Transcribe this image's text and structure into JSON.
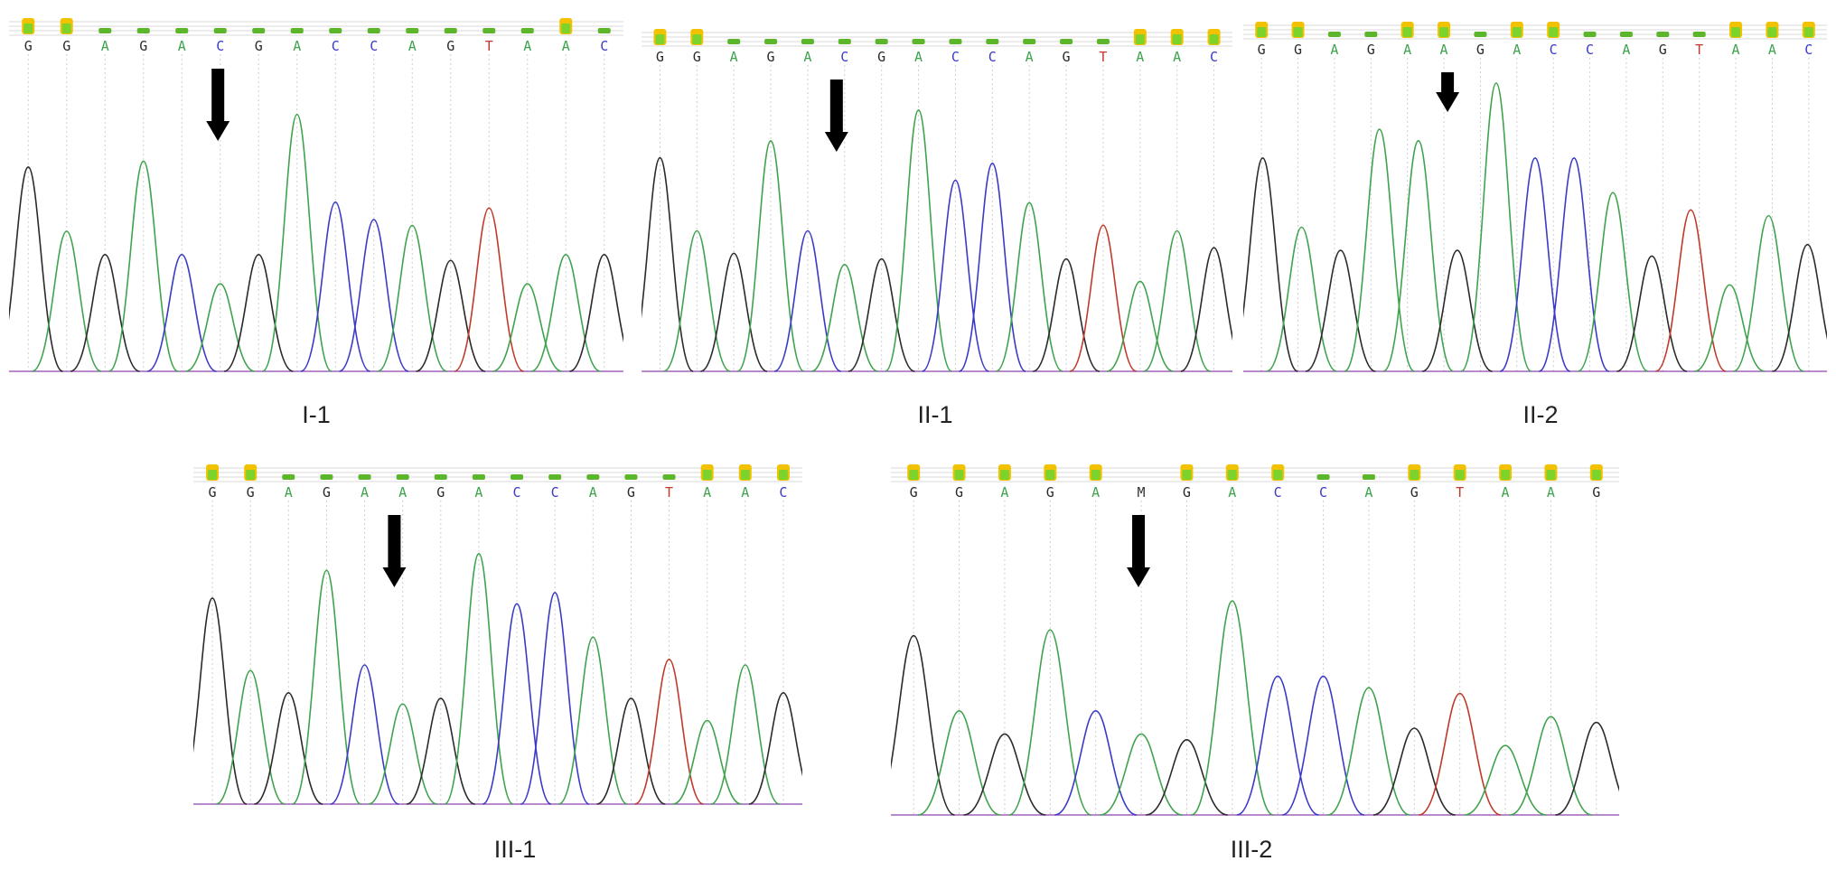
{
  "colors": {
    "A": "#3fa34d",
    "C": "#3a3ac8",
    "G": "#2a2a2a",
    "T": "#c0392b",
    "M": "#333333",
    "arrow": "#000000"
  },
  "panels": [
    {
      "label": "I-1",
      "bases": [
        "G",
        "G",
        "A",
        "G",
        "A",
        "C",
        "G",
        "A",
        "C",
        "C",
        "A",
        "G",
        "T",
        "A",
        "A",
        "C"
      ],
      "quality": [
        "high",
        "high",
        "low",
        "low",
        "low",
        "low",
        "low",
        "low",
        "low",
        "low",
        "low",
        "low",
        "low",
        "low",
        "high",
        "low"
      ],
      "arrow_base_index": 5,
      "peaks": [
        {
          "base": "G",
          "h": 0.7
        },
        {
          "base": "A",
          "h": 0.48
        },
        {
          "base": "G",
          "h": 0.4
        },
        {
          "base": "A",
          "h": 0.72
        },
        {
          "base": "C",
          "h": 0.4
        },
        {
          "base": "A",
          "h": 0.3
        },
        {
          "base": "G",
          "h": 0.4
        },
        {
          "base": "A",
          "h": 0.88
        },
        {
          "base": "C",
          "h": 0.58
        },
        {
          "base": "C",
          "h": 0.52
        },
        {
          "base": "A",
          "h": 0.5
        },
        {
          "base": "G",
          "h": 0.38
        },
        {
          "base": "T",
          "h": 0.56
        },
        {
          "base": "A",
          "h": 0.3
        },
        {
          "base": "A",
          "h": 0.4
        },
        {
          "base": "G",
          "h": 0.4
        }
      ]
    },
    {
      "label": "II-1",
      "bases": [
        "G",
        "G",
        "A",
        "G",
        "A",
        "C",
        "G",
        "A",
        "C",
        "C",
        "A",
        "G",
        "T",
        "A",
        "A",
        "C"
      ],
      "quality": [
        "high",
        "high",
        "low",
        "low",
        "low",
        "low",
        "low",
        "low",
        "low",
        "low",
        "low",
        "low",
        "low",
        "high",
        "high",
        "high"
      ],
      "arrow_base_index": 5,
      "peaks": [
        {
          "base": "G",
          "h": 0.76
        },
        {
          "base": "A",
          "h": 0.5
        },
        {
          "base": "G",
          "h": 0.42
        },
        {
          "base": "A",
          "h": 0.82
        },
        {
          "base": "C",
          "h": 0.5
        },
        {
          "base": "A",
          "h": 0.38
        },
        {
          "base": "G",
          "h": 0.4
        },
        {
          "base": "A",
          "h": 0.93
        },
        {
          "base": "C",
          "h": 0.68
        },
        {
          "base": "C",
          "h": 0.74
        },
        {
          "base": "A",
          "h": 0.6
        },
        {
          "base": "G",
          "h": 0.4
        },
        {
          "base": "T",
          "h": 0.52
        },
        {
          "base": "A",
          "h": 0.32
        },
        {
          "base": "A",
          "h": 0.5
        },
        {
          "base": "G",
          "h": 0.44
        }
      ]
    },
    {
      "label": "II-2",
      "bases": [
        "G",
        "G",
        "A",
        "G",
        "A",
        "A",
        "G",
        "A",
        "C",
        "C",
        "A",
        "G",
        "T",
        "A",
        "A",
        "C"
      ],
      "quality": [
        "high",
        "high",
        "low",
        "low",
        "high",
        "high",
        "low",
        "high",
        "high",
        "low",
        "low",
        "low",
        "low",
        "high",
        "high",
        "high"
      ],
      "arrow_base_index": 5,
      "peaks": [
        {
          "base": "G",
          "h": 0.74
        },
        {
          "base": "A",
          "h": 0.5
        },
        {
          "base": "G",
          "h": 0.42
        },
        {
          "base": "A",
          "h": 0.84
        },
        {
          "base": "A",
          "h": 0.8
        },
        {
          "base": "G",
          "h": 0.42
        },
        {
          "base": "A",
          "h": 1.0
        },
        {
          "base": "C",
          "h": 0.74
        },
        {
          "base": "C",
          "h": 0.74
        },
        {
          "base": "A",
          "h": 0.62
        },
        {
          "base": "G",
          "h": 0.4
        },
        {
          "base": "T",
          "h": 0.56
        },
        {
          "base": "A",
          "h": 0.3
        },
        {
          "base": "A",
          "h": 0.54
        },
        {
          "base": "G",
          "h": 0.44
        }
      ]
    },
    {
      "label": "III-1",
      "bases": [
        "G",
        "G",
        "A",
        "G",
        "A",
        "A",
        "G",
        "A",
        "C",
        "C",
        "A",
        "G",
        "T",
        "A",
        "A",
        "C"
      ],
      "quality": [
        "high",
        "high",
        "low",
        "low",
        "low",
        "low",
        "low",
        "low",
        "low",
        "low",
        "low",
        "low",
        "low",
        "high",
        "high",
        "high"
      ],
      "arrow_base_index": 5,
      "peaks": [
        {
          "base": "G",
          "h": 0.74
        },
        {
          "base": "A",
          "h": 0.48
        },
        {
          "base": "G",
          "h": 0.4
        },
        {
          "base": "A",
          "h": 0.84
        },
        {
          "base": "C",
          "h": 0.5
        },
        {
          "base": "A",
          "h": 0.36
        },
        {
          "base": "G",
          "h": 0.38
        },
        {
          "base": "A",
          "h": 0.9
        },
        {
          "base": "C",
          "h": 0.72
        },
        {
          "base": "C",
          "h": 0.76
        },
        {
          "base": "A",
          "h": 0.6
        },
        {
          "base": "G",
          "h": 0.38
        },
        {
          "base": "T",
          "h": 0.52
        },
        {
          "base": "A",
          "h": 0.3
        },
        {
          "base": "A",
          "h": 0.5
        },
        {
          "base": "G",
          "h": 0.4
        }
      ]
    },
    {
      "label": "III-2",
      "bases": [
        "G",
        "G",
        "A",
        "G",
        "A",
        "M",
        "G",
        "A",
        "C",
        "C",
        "A",
        "G",
        "T",
        "A",
        "A",
        "G"
      ],
      "quality": [
        "high",
        "high",
        "high",
        "high",
        "high",
        "none",
        "high",
        "high",
        "high",
        "low",
        "low",
        "high",
        "high",
        "high",
        "high",
        "high"
      ],
      "arrow_base_index": 5,
      "peaks": [
        {
          "base": "G",
          "h": 0.62
        },
        {
          "base": "A",
          "h": 0.36
        },
        {
          "base": "G",
          "h": 0.28
        },
        {
          "base": "A",
          "h": 0.64
        },
        {
          "base": "C",
          "h": 0.36
        },
        {
          "base": "A",
          "h": 0.28
        },
        {
          "base": "G",
          "h": 0.26
        },
        {
          "base": "A",
          "h": 0.74
        },
        {
          "base": "C",
          "h": 0.48
        },
        {
          "base": "C",
          "h": 0.48
        },
        {
          "base": "A",
          "h": 0.44
        },
        {
          "base": "G",
          "h": 0.3
        },
        {
          "base": "T",
          "h": 0.42
        },
        {
          "base": "A",
          "h": 0.24
        },
        {
          "base": "A",
          "h": 0.34
        },
        {
          "base": "G",
          "h": 0.32
        }
      ]
    }
  ]
}
